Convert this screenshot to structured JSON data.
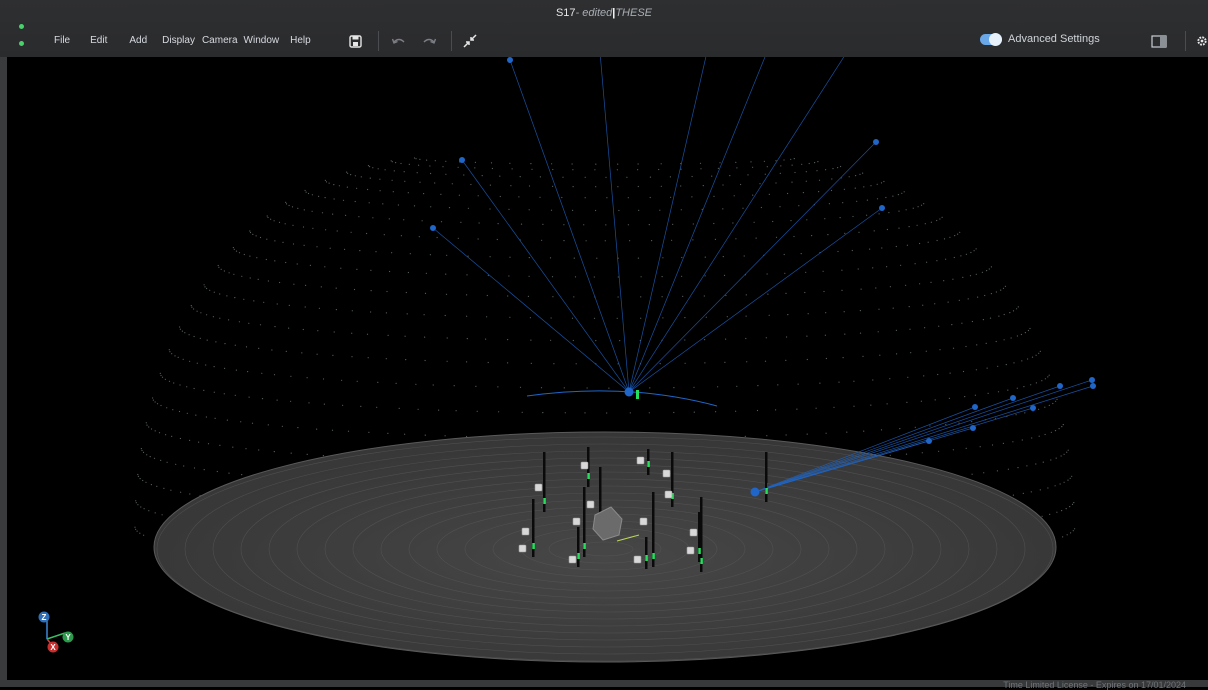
{
  "window": {
    "name": "S17",
    "edited_tag": "- edited",
    "separator": "|",
    "project": "THESE"
  },
  "menu": {
    "items": [
      "File",
      "Edit",
      "Add",
      "Display",
      "Camera",
      "Window",
      "Help"
    ]
  },
  "toolbar": {
    "save_icon": "save-icon",
    "undo_icon": "undo-icon",
    "redo_icon": "redo-icon",
    "collapse_icon": "collapse-arrows-icon",
    "advanced_settings_label": "Advanced Settings",
    "advanced_settings_on": true,
    "panel_icon": "panel-layout-icon",
    "settings_icon": "gear-icon"
  },
  "axes": {
    "z": "Z",
    "y": "Y",
    "x": "X"
  },
  "status": {
    "license_text": "Time Limited License - Expires on 17/01/2024"
  },
  "colors": {
    "accent_blue": "#1f66c8",
    "marker_green": "#25e05b",
    "floor": "#3b3b3b",
    "menu_bar": "#2e2f31",
    "status_green": "#47d36a"
  }
}
